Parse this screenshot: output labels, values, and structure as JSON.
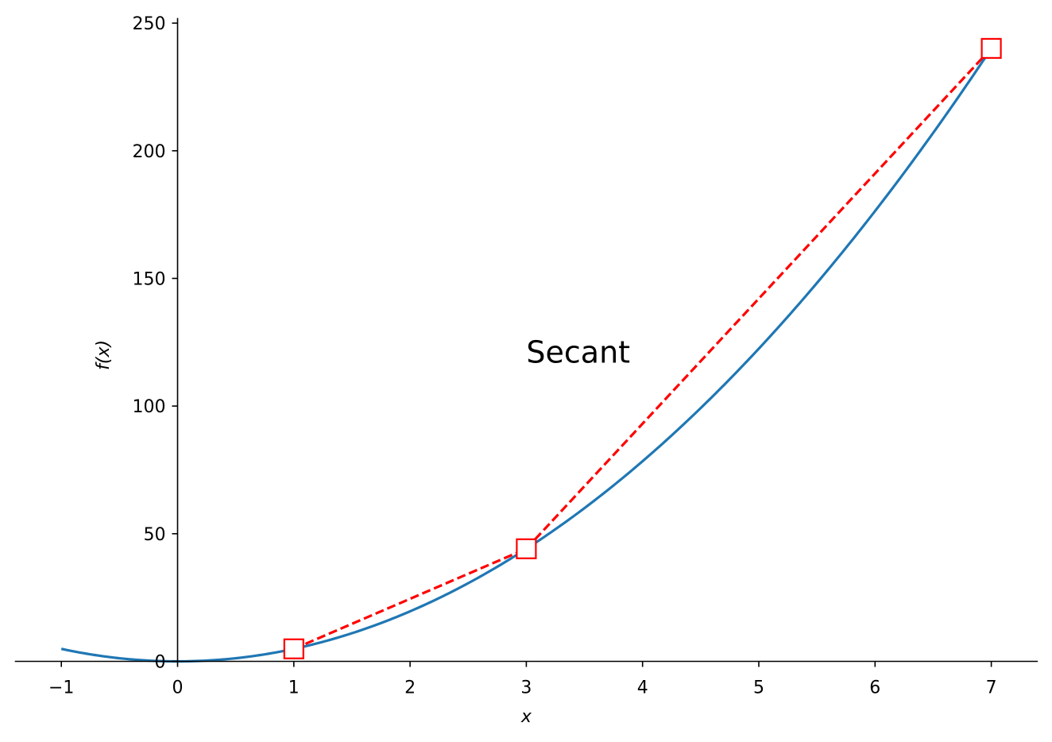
{
  "chart_data": {
    "type": "line",
    "title": "",
    "xlabel": "x",
    "ylabel": "f(x)",
    "xlim": [
      -1.4,
      7.4
    ],
    "ylim": [
      -1,
      252
    ],
    "grid": false,
    "x_ticks": [
      -1,
      0,
      1,
      2,
      3,
      4,
      5,
      6,
      7
    ],
    "x_tick_labels": [
      "−1",
      "0",
      "1",
      "2",
      "3",
      "4",
      "5",
      "6",
      "7"
    ],
    "y_ticks": [
      0,
      50,
      100,
      150,
      200,
      250
    ],
    "y_tick_labels": [
      "0",
      "50",
      "100",
      "150",
      "200",
      "250"
    ],
    "series": [
      {
        "kind": "curve",
        "color": "#1f77b4",
        "style": "solid",
        "x": [
          -1,
          -0.5,
          0,
          0.5,
          1,
          1.5,
          2,
          2.5,
          3,
          3.5,
          4,
          4.5,
          5,
          5.5,
          6,
          6.5,
          7
        ],
        "y": [
          4.9,
          1.2,
          0,
          1.2,
          4.9,
          11.0,
          19.6,
          30.6,
          44.1,
          60.0,
          78.4,
          99.2,
          122.5,
          148.2,
          176.4,
          207.0,
          240.1
        ]
      },
      {
        "kind": "secant",
        "color": "#ff0000",
        "style": "dashed",
        "marker": "square",
        "x": [
          1,
          3,
          7
        ],
        "y": [
          4.9,
          44.1,
          240.1
        ]
      }
    ],
    "annotations": [
      {
        "text": "Secant",
        "x": 3.0,
        "y": 121
      }
    ]
  }
}
